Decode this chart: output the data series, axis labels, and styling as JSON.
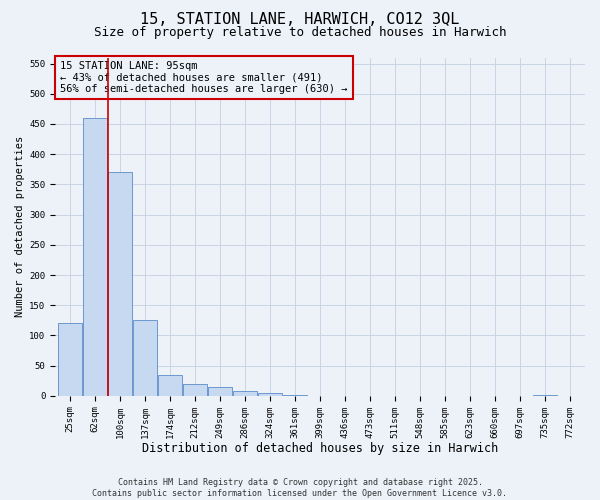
{
  "title": "15, STATION LANE, HARWICH, CO12 3QL",
  "subtitle": "Size of property relative to detached houses in Harwich",
  "xlabel": "Distribution of detached houses by size in Harwich",
  "ylabel": "Number of detached properties",
  "categories": [
    "25sqm",
    "62sqm",
    "100sqm",
    "137sqm",
    "174sqm",
    "212sqm",
    "249sqm",
    "286sqm",
    "324sqm",
    "361sqm",
    "399sqm",
    "436sqm",
    "473sqm",
    "511sqm",
    "548sqm",
    "585sqm",
    "623sqm",
    "660sqm",
    "697sqm",
    "735sqm",
    "772sqm"
  ],
  "values": [
    120,
    460,
    370,
    125,
    35,
    20,
    15,
    8,
    5,
    1,
    0,
    0,
    0,
    0,
    0,
    0,
    0,
    0,
    0,
    1,
    0
  ],
  "bar_color": "#c6d9f0",
  "bar_edge_color": "#5b8cc8",
  "grid_color": "#c8d4e4",
  "background_color": "#edf2f9",
  "vline_x": 1.5,
  "vline_color": "#cc0000",
  "annotation_text_line1": "15 STATION LANE: 95sqm",
  "annotation_text_line2": "← 43% of detached houses are smaller (491)",
  "annotation_text_line3": "56% of semi-detached houses are larger (630) →",
  "annotation_box_color": "#cc0000",
  "ylim": [
    0,
    560
  ],
  "yticks": [
    0,
    50,
    100,
    150,
    200,
    250,
    300,
    350,
    400,
    450,
    500,
    550
  ],
  "footnote": "Contains HM Land Registry data © Crown copyright and database right 2025.\nContains public sector information licensed under the Open Government Licence v3.0.",
  "title_fontsize": 11,
  "subtitle_fontsize": 9,
  "xlabel_fontsize": 8.5,
  "ylabel_fontsize": 7.5,
  "tick_fontsize": 6.5,
  "annotation_fontsize": 7.5,
  "footnote_fontsize": 6
}
